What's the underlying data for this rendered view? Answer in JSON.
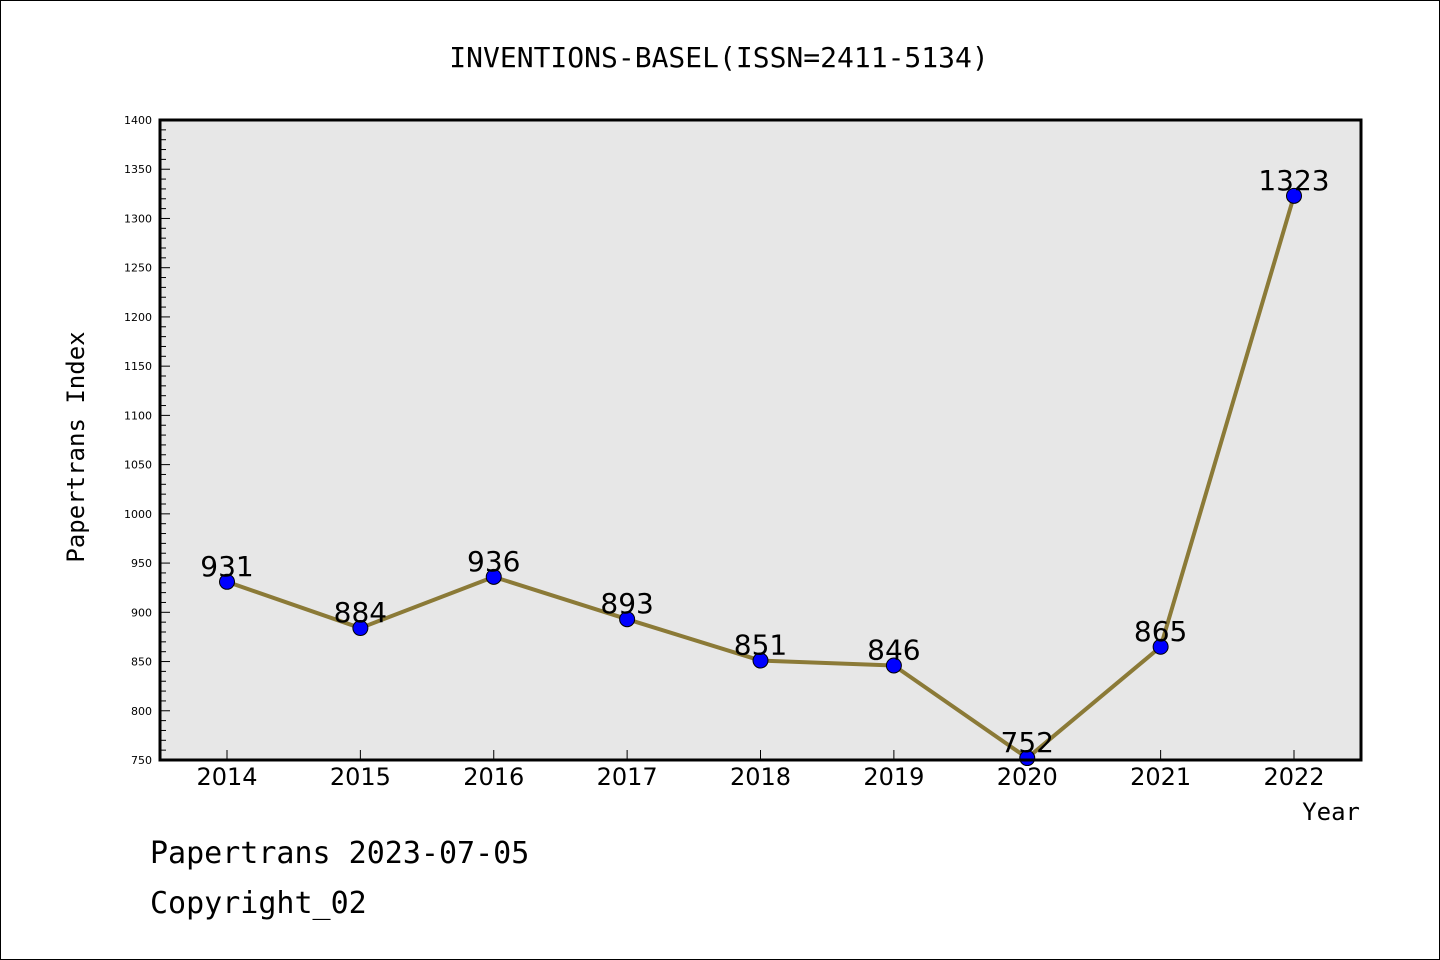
{
  "chart_data": {
    "type": "line",
    "title": "INVENTIONS-BASEL(ISSN=2411-5134)",
    "xlabel": "Year",
    "ylabel": "Papertrans Index",
    "x": [
      "2014",
      "2015",
      "2016",
      "2017",
      "2018",
      "2019",
      "2020",
      "2021",
      "2022"
    ],
    "series": [
      {
        "values": [
          931,
          884,
          936,
          893,
          851,
          846,
          752,
          865,
          1323
        ]
      }
    ],
    "data_labels": [
      "931",
      "884",
      "936",
      "893",
      "851",
      "846",
      "752",
      "865",
      "1323"
    ],
    "ylim": [
      750,
      1400
    ],
    "yticks": [
      750,
      800,
      850,
      900,
      950,
      1000,
      1050,
      1100,
      1150,
      1200,
      1250,
      1300,
      1350,
      1400
    ],
    "ytick_labels": [
      "750",
      "800",
      "850",
      "900",
      "950",
      "1000",
      "1050",
      "1100",
      "1150",
      "1200",
      "1250",
      "1300",
      "1350",
      "1400"
    ],
    "grid": false,
    "legend": "none",
    "colors": {
      "line": "#8B7A37",
      "marker": "#0000FF",
      "plot_background": "#E7E7E7"
    }
  },
  "footer": {
    "line1": "Papertrans 2023-07-05",
    "line2": "Copyright_02"
  }
}
